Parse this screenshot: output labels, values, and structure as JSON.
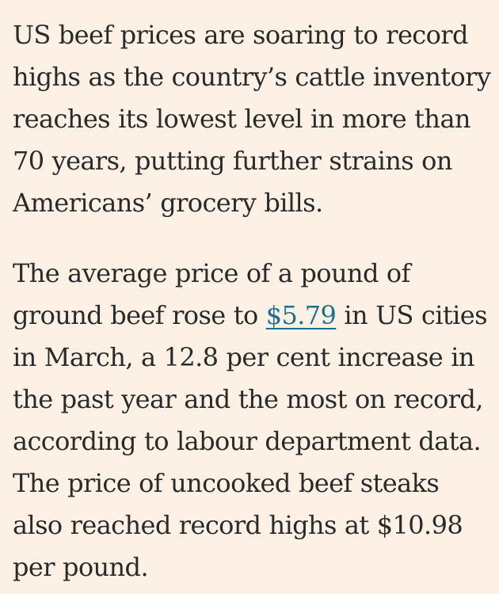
{
  "article": {
    "paragraph_1": {
      "lines": [
        "US beef prices are soaring to record",
        "highs as the country’s cattle inventory",
        "reaches its lowest level in more than",
        "70 years, putting further strains on",
        "Americans’ grocery bills."
      ]
    },
    "paragraph_2": {
      "line_1": "The average price of a pound of",
      "line_2_before": "ground beef rose to ",
      "price_link": "$5.79",
      "line_2_after": " in US cities",
      "lines_rest": [
        "in March, a 12.8 per cent increase in",
        "the past year and the most on record,",
        "according to labour department data.",
        "The price of uncooked beef steaks",
        "also reached record highs at $10.98",
        "per pound."
      ]
    },
    "colors": {
      "background": "#fdf1e6",
      "text": "#2a2a2a",
      "link": "#1f6f8b"
    }
  }
}
